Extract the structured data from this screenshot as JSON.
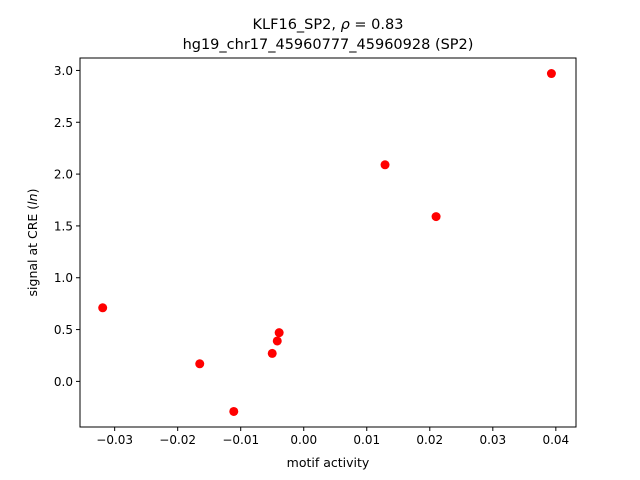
{
  "chart_data": {
    "type": "scatter",
    "title_line1_prefix": "KLF16_SP2, ",
    "title_rho_symbol": "ρ",
    "title_rho_value": " = 0.83",
    "title_line2": "hg19_chr17_45960777_45960928 (SP2)",
    "xlabel": "motif activity",
    "ylabel_prefix": "signal at CRE (",
    "ylabel_italic": "ln",
    "ylabel_suffix": ")",
    "xlim": [
      -0.0355,
      0.0432
    ],
    "ylim": [
      -0.44,
      3.12
    ],
    "x_ticks": [
      {
        "value": -0.03,
        "label": "−0.03"
      },
      {
        "value": -0.02,
        "label": "−0.02"
      },
      {
        "value": -0.01,
        "label": "−0.01"
      },
      {
        "value": 0.0,
        "label": "0.00"
      },
      {
        "value": 0.01,
        "label": "0.01"
      },
      {
        "value": 0.02,
        "label": "0.02"
      },
      {
        "value": 0.03,
        "label": "0.03"
      },
      {
        "value": 0.04,
        "label": "0.04"
      }
    ],
    "y_ticks": [
      {
        "value": 0.0,
        "label": "0.0"
      },
      {
        "value": 0.5,
        "label": "0.5"
      },
      {
        "value": 1.0,
        "label": "1.0"
      },
      {
        "value": 1.5,
        "label": "1.5"
      },
      {
        "value": 2.0,
        "label": "2.0"
      },
      {
        "value": 2.5,
        "label": "2.5"
      },
      {
        "value": 3.0,
        "label": "3.0"
      }
    ],
    "points": [
      {
        "x": -0.0319,
        "y": 0.71
      },
      {
        "x": -0.0165,
        "y": 0.17
      },
      {
        "x": -0.0111,
        "y": -0.29
      },
      {
        "x": -0.005,
        "y": 0.27
      },
      {
        "x": -0.0042,
        "y": 0.39
      },
      {
        "x": -0.0039,
        "y": 0.47
      },
      {
        "x": 0.0129,
        "y": 2.09
      },
      {
        "x": 0.021,
        "y": 1.59
      },
      {
        "x": 0.0393,
        "y": 2.97
      }
    ],
    "marker_color": "#ff0000",
    "grid": false,
    "legend": false
  }
}
